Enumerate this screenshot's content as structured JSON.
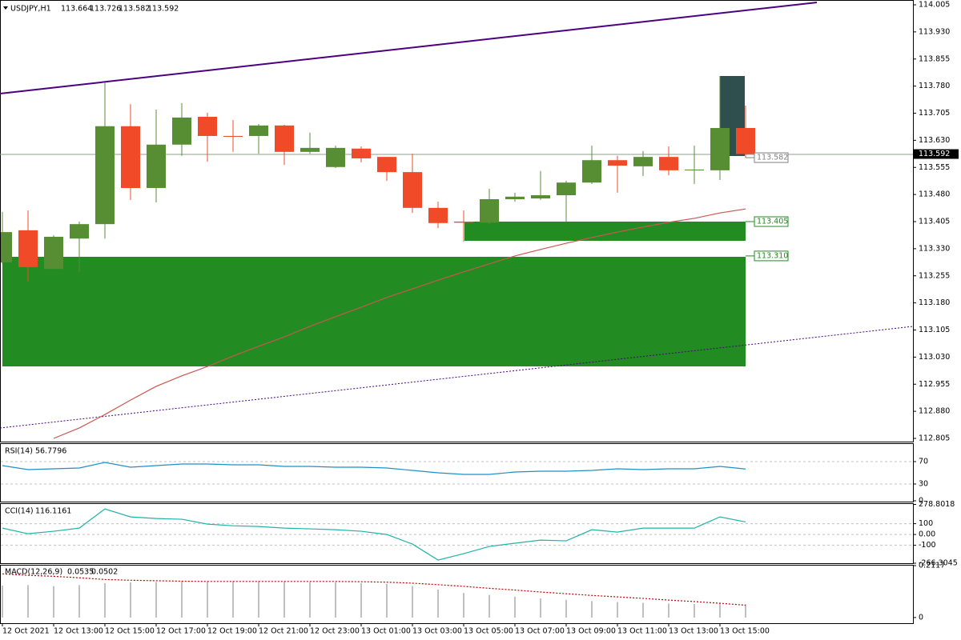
{
  "chart_data": [
    {
      "type": "candlestick",
      "title": "USDJPY,H1",
      "categories": [
        "12 Oct 2021",
        null,
        "12 Oct 13:00",
        null,
        "12 Oct 15:00",
        null,
        "12 Oct 17:00",
        null,
        "12 Oct 19:00",
        null,
        "12 Oct 21:00",
        null,
        "12 Oct 23:00",
        null,
        "13 Oct 01:00",
        null,
        "13 Oct 03:00",
        null,
        "13 Oct 05:00",
        null,
        "13 Oct 07:00",
        null,
        "13 Oct 09:00",
        null,
        "13 Oct 11:00",
        null,
        "13 Oct 13:00",
        null,
        "13 Oct 15:00",
        null
      ],
      "open": [
        113.292,
        113.381,
        113.274,
        113.358,
        113.398,
        113.669,
        113.498,
        113.618,
        113.695,
        113.642,
        113.642,
        113.671,
        113.598,
        113.556,
        113.607,
        113.584,
        113.542,
        113.443,
        113.405,
        113.402,
        113.467,
        113.469,
        113.478,
        113.513,
        113.575,
        113.558,
        113.584,
        113.547,
        113.547,
        113.664
      ],
      "high": [
        113.432,
        113.436,
        113.367,
        113.405,
        113.79,
        113.73,
        113.715,
        113.733,
        113.706,
        113.686,
        113.675,
        113.673,
        113.651,
        113.615,
        113.613,
        113.584,
        113.593,
        113.46,
        113.436,
        113.496,
        113.485,
        113.545,
        113.518,
        113.615,
        113.587,
        113.6,
        113.613,
        113.615,
        113.808,
        113.726
      ],
      "low": [
        113.288,
        113.239,
        113.274,
        113.265,
        113.358,
        113.465,
        113.458,
        113.587,
        113.571,
        113.598,
        113.593,
        113.562,
        113.593,
        113.553,
        113.569,
        113.518,
        113.429,
        113.387,
        113.35,
        113.398,
        113.46,
        113.465,
        113.403,
        113.509,
        113.485,
        113.531,
        113.533,
        113.509,
        113.52,
        113.582
      ],
      "close": [
        113.376,
        113.279,
        113.363,
        113.398,
        113.669,
        113.498,
        113.618,
        113.693,
        113.642,
        113.64,
        113.671,
        113.598,
        113.609,
        113.609,
        113.58,
        113.542,
        113.443,
        113.401,
        113.402,
        113.467,
        113.474,
        113.478,
        113.513,
        113.575,
        113.56,
        113.584,
        113.547,
        113.549,
        113.664,
        113.592
      ],
      "up_color": "#578e34",
      "down_color": "#f04a28",
      "ma": {
        "color": "#c8584f",
        "values": [
          null,
          null,
          112.805,
          112.834,
          112.871,
          112.911,
          112.949,
          112.978,
          113.004,
          113.033,
          113.06,
          113.086,
          113.115,
          113.142,
          113.168,
          113.195,
          113.219,
          113.243,
          113.266,
          113.288,
          113.31,
          113.328,
          113.345,
          113.361,
          113.376,
          113.39,
          113.403,
          113.414,
          113.429,
          113.44
        ]
      },
      "levels": [
        113.582,
        113.405,
        {
          "value": 113.31,
          "label": "113.310"
        }
      ],
      "level_colors": [
        "#808080",
        "#228b22",
        "#228b22"
      ],
      "ylim": [
        112.805,
        114.005
      ],
      "yticks": [
        114.005,
        {
          "value": 113.93,
          "label": "113.930"
        },
        113.855,
        {
          "value": 113.78,
          "label": "113.780"
        },
        113.705,
        {
          "value": 113.63,
          "label": "113.630"
        },
        113.555,
        {
          "value": 113.48,
          "label": "113.480"
        },
        113.405,
        {
          "value": 113.33,
          "label": "113.330"
        },
        113.255,
        {
          "value": 113.18,
          "label": "113.180"
        },
        113.105,
        {
          "value": 113.03,
          "label": "113.030"
        },
        112.955,
        {
          "value": 112.88,
          "label": "112.880"
        },
        112.805
      ]
    },
    {
      "type": "line",
      "title": "RSI(14)",
      "color": "#1e90c8",
      "values": [
        62.9,
        55.7,
        57.1,
        58.6,
        68.6,
        60,
        62.9,
        65.7,
        65.7,
        64.3,
        64.3,
        61.4,
        61.4,
        60,
        60,
        58.6,
        54.3,
        50,
        47.1,
        47.1,
        51.4,
        52.9,
        52.9,
        54.3,
        57.1,
        55.7,
        57.1,
        57.1,
        61.4,
        56.7796
      ],
      "ylim": [
        0,
        100
      ],
      "yticks": [
        70,
        30,
        0
      ],
      "levels": [
        70,
        30
      ]
    },
    {
      "type": "line",
      "title": "CCI(14)",
      "color": "#20b2aa",
      "values": [
        59,
        7,
        30,
        59,
        237,
        163,
        148,
        141,
        96,
        81,
        74,
        59,
        52,
        44,
        30,
        0,
        -89,
        -237,
        -178,
        -111,
        -81,
        -52,
        -59,
        44,
        22,
        59,
        59,
        59,
        163,
        116.1161
      ],
      "ylim": [
        -266.3045,
        278.8018
      ],
      "yticks": [
        278.8018,
        100,
        {
          "value": 0,
          "label": "0.00"
        },
        -100,
        -266.3045
      ],
      "levels": [
        100,
        0,
        -100
      ]
    },
    {
      "type": "macd",
      "title": "MACD(12,26,9)",
      "color": "#c0c0c0",
      "signal_color": "#c00000",
      "values": [
        0.13,
        0.132,
        0.128,
        0.132,
        0.14,
        0.143,
        0.145,
        0.147,
        0.147,
        0.148,
        0.148,
        0.146,
        0.144,
        0.143,
        0.14,
        0.137,
        0.128,
        0.114,
        0.1,
        0.092,
        0.085,
        0.078,
        0.072,
        0.067,
        0.063,
        0.06,
        0.057,
        0.055,
        0.056,
        0.0535
      ],
      "signal": [
        0.178,
        0.172,
        0.168,
        0.162,
        0.155,
        0.152,
        0.15,
        0.148,
        0.147,
        0.147,
        0.147,
        0.147,
        0.147,
        0.147,
        0.146,
        0.144,
        0.14,
        0.134,
        0.127,
        0.119,
        0.112,
        0.104,
        0.097,
        0.09,
        0.084,
        0.078,
        0.071,
        0.065,
        0.058,
        0.0502
      ],
      "ylim": [
        -0.0233,
        0.2117
      ],
      "yticks": [
        0.2117,
        0
      ]
    }
  ]
}
